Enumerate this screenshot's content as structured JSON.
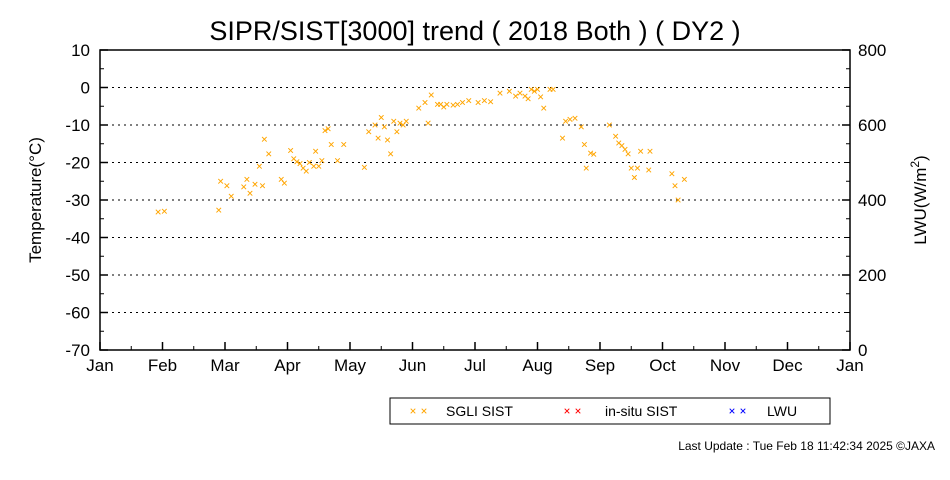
{
  "chart_data": {
    "type": "scatter",
    "title": "SIPR/SIST[3000] trend ( 2018 Both ) ( DY2 )",
    "ylabel_left": "Temperature(°C)",
    "ylabel_right_prefix": "LWU(W/m",
    "ylabel_right_sup": "2",
    "ylabel_right_suffix": ")",
    "x_ticks": [
      "Jan",
      "Feb",
      "Mar",
      "Apr",
      "May",
      "Jun",
      "Jul",
      "Aug",
      "Sep",
      "Oct",
      "Nov",
      "Dec",
      "Jan"
    ],
    "ylim_left": [
      -70,
      10
    ],
    "yticks_left": [
      10,
      0,
      -10,
      -20,
      -30,
      -40,
      -50,
      -60,
      -70
    ],
    "ylim_right": [
      0,
      800
    ],
    "yticks_right": [
      800,
      600,
      400,
      200,
      0
    ],
    "grid": "dotted horizontal",
    "series": [
      {
        "name": "SGLI SIST",
        "color": "#ffa500",
        "marker": "x",
        "points": [
          [
            0.93,
            -33.2
          ],
          [
            1.03,
            -33.0
          ],
          [
            1.9,
            -32.7
          ],
          [
            1.93,
            -25.0
          ],
          [
            2.03,
            -26.2
          ],
          [
            2.1,
            -29.0
          ],
          [
            2.3,
            -26.5
          ],
          [
            2.35,
            -24.5
          ],
          [
            2.4,
            -28.2
          ],
          [
            2.48,
            -25.8
          ],
          [
            2.55,
            -21.0
          ],
          [
            2.6,
            -26.2
          ],
          [
            2.63,
            -13.8
          ],
          [
            2.7,
            -17.7
          ],
          [
            2.9,
            -24.5
          ],
          [
            2.95,
            -25.5
          ],
          [
            3.05,
            -16.8
          ],
          [
            3.1,
            -19.0
          ],
          [
            3.15,
            -19.8
          ],
          [
            3.2,
            -20.3
          ],
          [
            3.25,
            -21.5
          ],
          [
            3.3,
            -22.3
          ],
          [
            3.35,
            -20.0
          ],
          [
            3.42,
            -21.0
          ],
          [
            3.45,
            -17.0
          ],
          [
            3.5,
            -21.0
          ],
          [
            3.55,
            -19.5
          ],
          [
            3.6,
            -11.5
          ],
          [
            3.65,
            -11.0
          ],
          [
            3.7,
            -15.2
          ],
          [
            3.8,
            -19.5
          ],
          [
            3.9,
            -15.2
          ],
          [
            4.23,
            -21.3
          ],
          [
            4.3,
            -11.8
          ],
          [
            4.4,
            -10.0
          ],
          [
            4.45,
            -13.5
          ],
          [
            4.5,
            -8.0
          ],
          [
            4.55,
            -10.5
          ],
          [
            4.6,
            -14.0
          ],
          [
            4.65,
            -17.7
          ],
          [
            4.7,
            -9.0
          ],
          [
            4.75,
            -11.8
          ],
          [
            4.8,
            -9.5
          ],
          [
            4.85,
            -10.0
          ],
          [
            4.9,
            -9.0
          ],
          [
            5.1,
            -5.5
          ],
          [
            5.2,
            -4.0
          ],
          [
            5.25,
            -9.5
          ],
          [
            5.3,
            -2.0
          ],
          [
            5.4,
            -4.5
          ],
          [
            5.45,
            -4.5
          ],
          [
            5.5,
            -5.2
          ],
          [
            5.55,
            -4.5
          ],
          [
            5.65,
            -4.7
          ],
          [
            5.72,
            -4.5
          ],
          [
            5.8,
            -4.0
          ],
          [
            5.9,
            -3.5
          ],
          [
            6.05,
            -4.0
          ],
          [
            6.15,
            -3.5
          ],
          [
            6.25,
            -3.8
          ],
          [
            6.4,
            -1.5
          ],
          [
            6.55,
            -1.0
          ],
          [
            6.65,
            -2.3
          ],
          [
            6.72,
            -1.5
          ],
          [
            6.8,
            -2.3
          ],
          [
            6.85,
            -3.0
          ],
          [
            6.9,
            -0.5
          ],
          [
            6.95,
            -1.0
          ],
          [
            7.0,
            -0.5
          ],
          [
            7.05,
            -2.5
          ],
          [
            7.1,
            -5.5
          ],
          [
            7.2,
            -0.5
          ],
          [
            7.25,
            -0.5
          ],
          [
            7.4,
            -13.5
          ],
          [
            7.45,
            -9.0
          ],
          [
            7.52,
            -8.5
          ],
          [
            7.6,
            -8.2
          ],
          [
            7.7,
            -10.5
          ],
          [
            7.75,
            -15.2
          ],
          [
            7.78,
            -21.5
          ],
          [
            7.85,
            -17.5
          ],
          [
            7.9,
            -17.8
          ],
          [
            8.15,
            -10.0
          ],
          [
            8.25,
            -13.0
          ],
          [
            8.3,
            -14.8
          ],
          [
            8.35,
            -15.5
          ],
          [
            8.4,
            -16.5
          ],
          [
            8.45,
            -17.7
          ],
          [
            8.5,
            -21.5
          ],
          [
            8.55,
            -24.0
          ],
          [
            8.6,
            -21.5
          ],
          [
            8.65,
            -17.0
          ],
          [
            8.78,
            -22.0
          ],
          [
            8.8,
            -17.0
          ],
          [
            9.15,
            -23.0
          ],
          [
            9.2,
            -26.2
          ],
          [
            9.25,
            -30.0
          ],
          [
            9.35,
            -24.5
          ]
        ]
      },
      {
        "name": "in-situ SIST",
        "color": "#ff0000",
        "marker": "x",
        "points": []
      },
      {
        "name": "LWU",
        "color": "#0000ff",
        "marker": "x",
        "points": []
      }
    ]
  },
  "footer": "Last Update : Tue Feb 18 11:42:34 2025  ©JAXA"
}
